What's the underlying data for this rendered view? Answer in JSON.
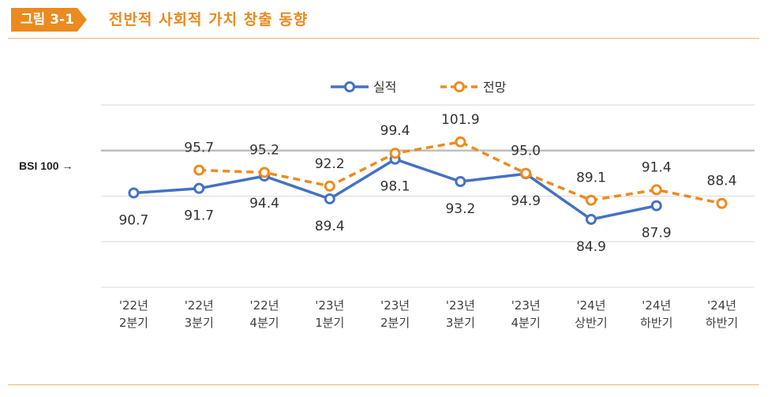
{
  "header": {
    "tag": "그림 3-1",
    "title": "전반적 사회적 가치 창출 동향"
  },
  "reference": {
    "label": "BSI 100 →",
    "value": 100
  },
  "colors": {
    "actual": "#4472c4",
    "forecast": "#ed8b1e",
    "accent": "#ea8a1f"
  },
  "chart_data": {
    "type": "line",
    "title": "전반적 사회적 가치 창출 동향",
    "categories": [
      [
        "'22년",
        "2분기"
      ],
      [
        "'22년",
        "3분기"
      ],
      [
        "'22년",
        "4분기"
      ],
      [
        "'23년",
        "1분기"
      ],
      [
        "'23년",
        "2분기"
      ],
      [
        "'23년",
        "3분기"
      ],
      [
        "'23년",
        "4분기"
      ],
      [
        "'24년",
        "상반기"
      ],
      [
        "'24년",
        "하반기"
      ],
      [
        "'24년",
        "하반기"
      ]
    ],
    "series": [
      {
        "name": "실적",
        "style": "solid",
        "values": [
          90.7,
          91.7,
          94.4,
          89.4,
          98.1,
          93.2,
          94.9,
          84.9,
          87.9,
          null
        ]
      },
      {
        "name": "전망",
        "style": "dashed",
        "values": [
          null,
          95.7,
          95.2,
          92.2,
          99.4,
          101.9,
          95.0,
          89.1,
          91.4,
          88.4
        ]
      }
    ],
    "ylim": [
      70,
      110
    ],
    "grid": true,
    "legend": "top-center"
  }
}
